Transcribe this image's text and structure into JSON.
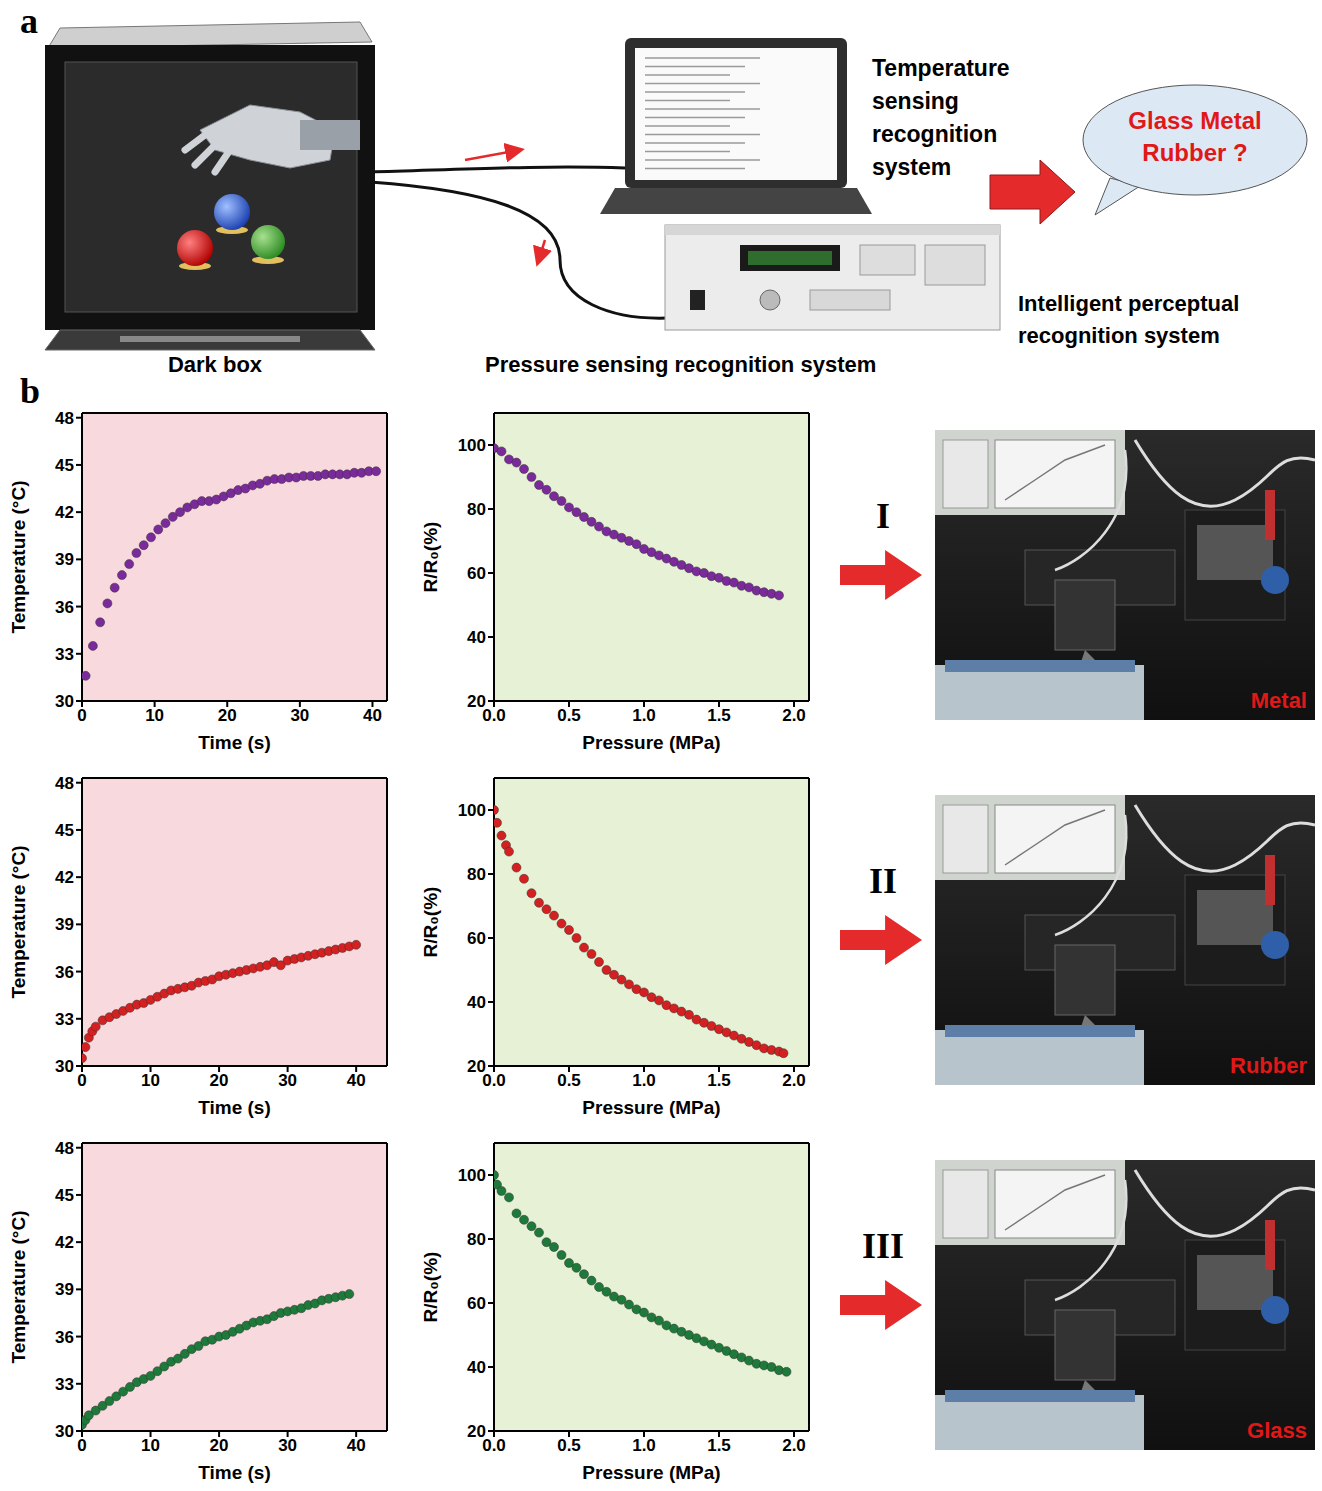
{
  "panel_a": {
    "letter": "a",
    "dark_box_label": "Dark box",
    "temperature_system": "Temperature sensing recognition system",
    "pressure_system": "Pressure sensing recognition system",
    "bubble": "Glass Metal Rubber ?",
    "output_system": "Intelligent perceptual recognition system"
  },
  "panel_b": {
    "letter": "b",
    "rows": [
      {
        "step": "I",
        "photo_label": "Metal"
      },
      {
        "step": "II",
        "photo_label": "Rubber"
      },
      {
        "step": "III",
        "photo_label": "Glass"
      }
    ]
  },
  "chart_data": [
    {
      "type": "scatter",
      "xlabel": "Time (s)",
      "ylabel": "Temperature (°C)",
      "color": "#7b2a9c",
      "marker": "circle",
      "grid": false,
      "xlim": [
        0,
        42
      ],
      "ylim": [
        30,
        48.3
      ],
      "xticks": [
        0,
        10,
        20,
        30,
        40
      ],
      "yticks": [
        30,
        33,
        36,
        39,
        42,
        45,
        48
      ],
      "x": [
        0.5,
        1.5,
        2.5,
        3.5,
        4.5,
        5.5,
        6.5,
        7.5,
        8.5,
        9.5,
        10.5,
        11.5,
        12.5,
        13.5,
        14.5,
        15.5,
        16.5,
        17.5,
        18.5,
        19.5,
        20.5,
        21.5,
        22.5,
        23.5,
        24.5,
        25.5,
        26.5,
        27.5,
        28.5,
        29.5,
        30.5,
        31.5,
        32.5,
        33.5,
        34.5,
        35.5,
        36.5,
        37.5,
        38.5,
        39.5,
        40.5
      ],
      "values": [
        31.6,
        33.5,
        35.0,
        36.2,
        37.2,
        38.0,
        38.7,
        39.4,
        39.9,
        40.4,
        40.9,
        41.3,
        41.7,
        42.0,
        42.3,
        42.5,
        42.7,
        42.7,
        42.8,
        43.0,
        43.2,
        43.4,
        43.5,
        43.7,
        43.8,
        44.0,
        44.1,
        44.1,
        44.2,
        44.2,
        44.3,
        44.3,
        44.3,
        44.4,
        44.4,
        44.4,
        44.4,
        44.5,
        44.5,
        44.6,
        44.6
      ]
    },
    {
      "type": "scatter",
      "xlabel": "Pressure (MPa)",
      "ylabel": "R/R₀(%)",
      "color": "#7b2a9c",
      "marker": "circle",
      "grid": false,
      "xlim": [
        0,
        2.1
      ],
      "ylim": [
        20,
        110
      ],
      "xticks": [
        {
          "value": 0,
          "label": "0.0"
        },
        0.5,
        {
          "value": 1,
          "label": "1.0"
        },
        1.5,
        {
          "value": 2,
          "label": "2.0"
        }
      ],
      "yticks": [
        20,
        40,
        60,
        80,
        100
      ],
      "x": [
        0,
        0.05,
        0.1,
        0.15,
        0.2,
        0.25,
        0.3,
        0.35,
        0.4,
        0.45,
        0.5,
        0.55,
        0.6,
        0.65,
        0.7,
        0.75,
        0.8,
        0.85,
        0.9,
        0.95,
        1.0,
        1.05,
        1.1,
        1.15,
        1.2,
        1.25,
        1.3,
        1.35,
        1.4,
        1.45,
        1.5,
        1.55,
        1.6,
        1.65,
        1.7,
        1.75,
        1.8,
        1.85,
        1.9
      ],
      "values": [
        99,
        98,
        95.5,
        94.5,
        92.5,
        90,
        87.5,
        86,
        84,
        82.5,
        80.5,
        79,
        77.5,
        76,
        74.5,
        73,
        72,
        71,
        70,
        69,
        67.5,
        66.5,
        65.5,
        64.5,
        63.5,
        62.5,
        61.5,
        60.5,
        60,
        59,
        58.5,
        57.5,
        57,
        56,
        55.5,
        54.5,
        54,
        53.5,
        53
      ]
    },
    {
      "type": "scatter",
      "xlabel": "Time (s)",
      "ylabel": "Temperature (°C)",
      "color": "#d42020",
      "marker": "circle",
      "grid": false,
      "xlim": [
        0,
        44.5
      ],
      "ylim": [
        30,
        48.3
      ],
      "xticks": [
        0,
        10,
        20,
        30,
        40
      ],
      "yticks": [
        30,
        33,
        36,
        39,
        42,
        45,
        48
      ],
      "x": [
        0,
        0.5,
        1,
        1.5,
        2,
        3,
        4,
        5,
        6,
        7,
        8,
        9,
        10,
        11,
        12,
        13,
        14,
        15,
        16,
        17,
        18,
        19,
        20,
        21,
        22,
        23,
        24,
        25,
        26,
        27,
        28,
        29,
        30,
        31,
        32,
        33,
        34,
        35,
        36,
        37,
        38,
        39,
        40
      ],
      "values": [
        30.5,
        31.2,
        31.8,
        32.2,
        32.5,
        32.9,
        33.1,
        33.3,
        33.5,
        33.7,
        33.9,
        34.0,
        34.2,
        34.4,
        34.6,
        34.8,
        34.9,
        35.0,
        35.1,
        35.3,
        35.4,
        35.5,
        35.7,
        35.8,
        35.9,
        36.0,
        36.1,
        36.2,
        36.3,
        36.4,
        36.6,
        36.4,
        36.7,
        36.8,
        36.9,
        37.0,
        37.1,
        37.2,
        37.3,
        37.4,
        37.5,
        37.6,
        37.7
      ]
    },
    {
      "type": "scatter",
      "xlabel": "Pressure (MPa)",
      "ylabel": "R/R₀(%)",
      "color": "#d42020",
      "marker": "circle",
      "grid": false,
      "xlim": [
        0,
        2.1
      ],
      "ylim": [
        20,
        110
      ],
      "xticks": [
        {
          "value": 0,
          "label": "0.0"
        },
        0.5,
        {
          "value": 1,
          "label": "1.0"
        },
        1.5,
        {
          "value": 2,
          "label": "2.0"
        }
      ],
      "yticks": [
        20,
        40,
        60,
        80,
        100
      ],
      "x": [
        0,
        0.02,
        0.05,
        0.08,
        0.1,
        0.15,
        0.2,
        0.25,
        0.3,
        0.35,
        0.4,
        0.45,
        0.5,
        0.55,
        0.6,
        0.65,
        0.7,
        0.75,
        0.8,
        0.85,
        0.9,
        0.95,
        1.0,
        1.05,
        1.1,
        1.15,
        1.2,
        1.25,
        1.3,
        1.35,
        1.4,
        1.45,
        1.5,
        1.55,
        1.6,
        1.65,
        1.7,
        1.75,
        1.8,
        1.85,
        1.9,
        1.93
      ],
      "values": [
        100,
        96,
        92,
        89,
        87,
        82,
        78.5,
        74,
        71,
        69,
        67,
        64.5,
        62.5,
        60,
        57,
        55,
        52.5,
        50,
        48.5,
        47,
        45.5,
        44,
        43,
        41.5,
        40.5,
        39,
        38,
        37,
        36,
        34.5,
        33.5,
        32.5,
        31.5,
        30.5,
        29.5,
        28.5,
        27.5,
        26.5,
        25.5,
        25,
        24.5,
        24
      ]
    },
    {
      "type": "scatter",
      "xlabel": "Time (s)",
      "ylabel": "Temperature (°C)",
      "color": "#1e7a3a",
      "marker": "circle",
      "grid": false,
      "xlim": [
        0,
        44.5
      ],
      "ylim": [
        30,
        48.3
      ],
      "xticks": [
        0,
        10,
        20,
        30,
        40
      ],
      "yticks": [
        30,
        33,
        36,
        39,
        42,
        45,
        48
      ],
      "x": [
        0,
        0.5,
        1,
        2,
        3,
        4,
        5,
        6,
        7,
        8,
        9,
        10,
        11,
        12,
        13,
        14,
        15,
        16,
        17,
        18,
        19,
        20,
        21,
        22,
        23,
        24,
        25,
        26,
        27,
        28,
        29,
        30,
        31,
        32,
        33,
        34,
        35,
        36,
        37,
        38,
        39
      ],
      "values": [
        30.4,
        30.7,
        31.0,
        31.3,
        31.6,
        31.9,
        32.2,
        32.5,
        32.8,
        33.1,
        33.3,
        33.5,
        33.8,
        34.1,
        34.4,
        34.6,
        34.9,
        35.2,
        35.4,
        35.7,
        35.8,
        36.0,
        36.1,
        36.3,
        36.5,
        36.7,
        36.9,
        37.0,
        37.1,
        37.3,
        37.5,
        37.6,
        37.7,
        37.8,
        38.0,
        38.1,
        38.3,
        38.4,
        38.5,
        38.6,
        38.7
      ]
    },
    {
      "type": "scatter",
      "xlabel": "Pressure (MPa)",
      "ylabel": "R/R₀(%)",
      "color": "#1e7a3a",
      "marker": "circle",
      "grid": false,
      "xlim": [
        0,
        2.1
      ],
      "ylim": [
        20,
        110
      ],
      "xticks": [
        {
          "value": 0,
          "label": "0.0"
        },
        0.5,
        {
          "value": 1,
          "label": "1.0"
        },
        1.5,
        {
          "value": 2,
          "label": "2.0"
        }
      ],
      "yticks": [
        20,
        40,
        60,
        80,
        100
      ],
      "x": [
        0,
        0.02,
        0.05,
        0.1,
        0.15,
        0.2,
        0.25,
        0.3,
        0.35,
        0.4,
        0.45,
        0.5,
        0.55,
        0.6,
        0.65,
        0.7,
        0.75,
        0.8,
        0.85,
        0.9,
        0.95,
        1.0,
        1.05,
        1.1,
        1.15,
        1.2,
        1.25,
        1.3,
        1.35,
        1.4,
        1.45,
        1.5,
        1.55,
        1.6,
        1.65,
        1.7,
        1.75,
        1.8,
        1.85,
        1.9,
        1.95
      ],
      "values": [
        100,
        97,
        95,
        93,
        88,
        86,
        84,
        82,
        79,
        77.5,
        75,
        72.5,
        71,
        69,
        67,
        65,
        63.5,
        62,
        61,
        59.5,
        58,
        57,
        55.5,
        54.5,
        53,
        52,
        51,
        50,
        49,
        48,
        47,
        46,
        45,
        44,
        43,
        42,
        41,
        40.5,
        40,
        39,
        38.5
      ]
    }
  ]
}
